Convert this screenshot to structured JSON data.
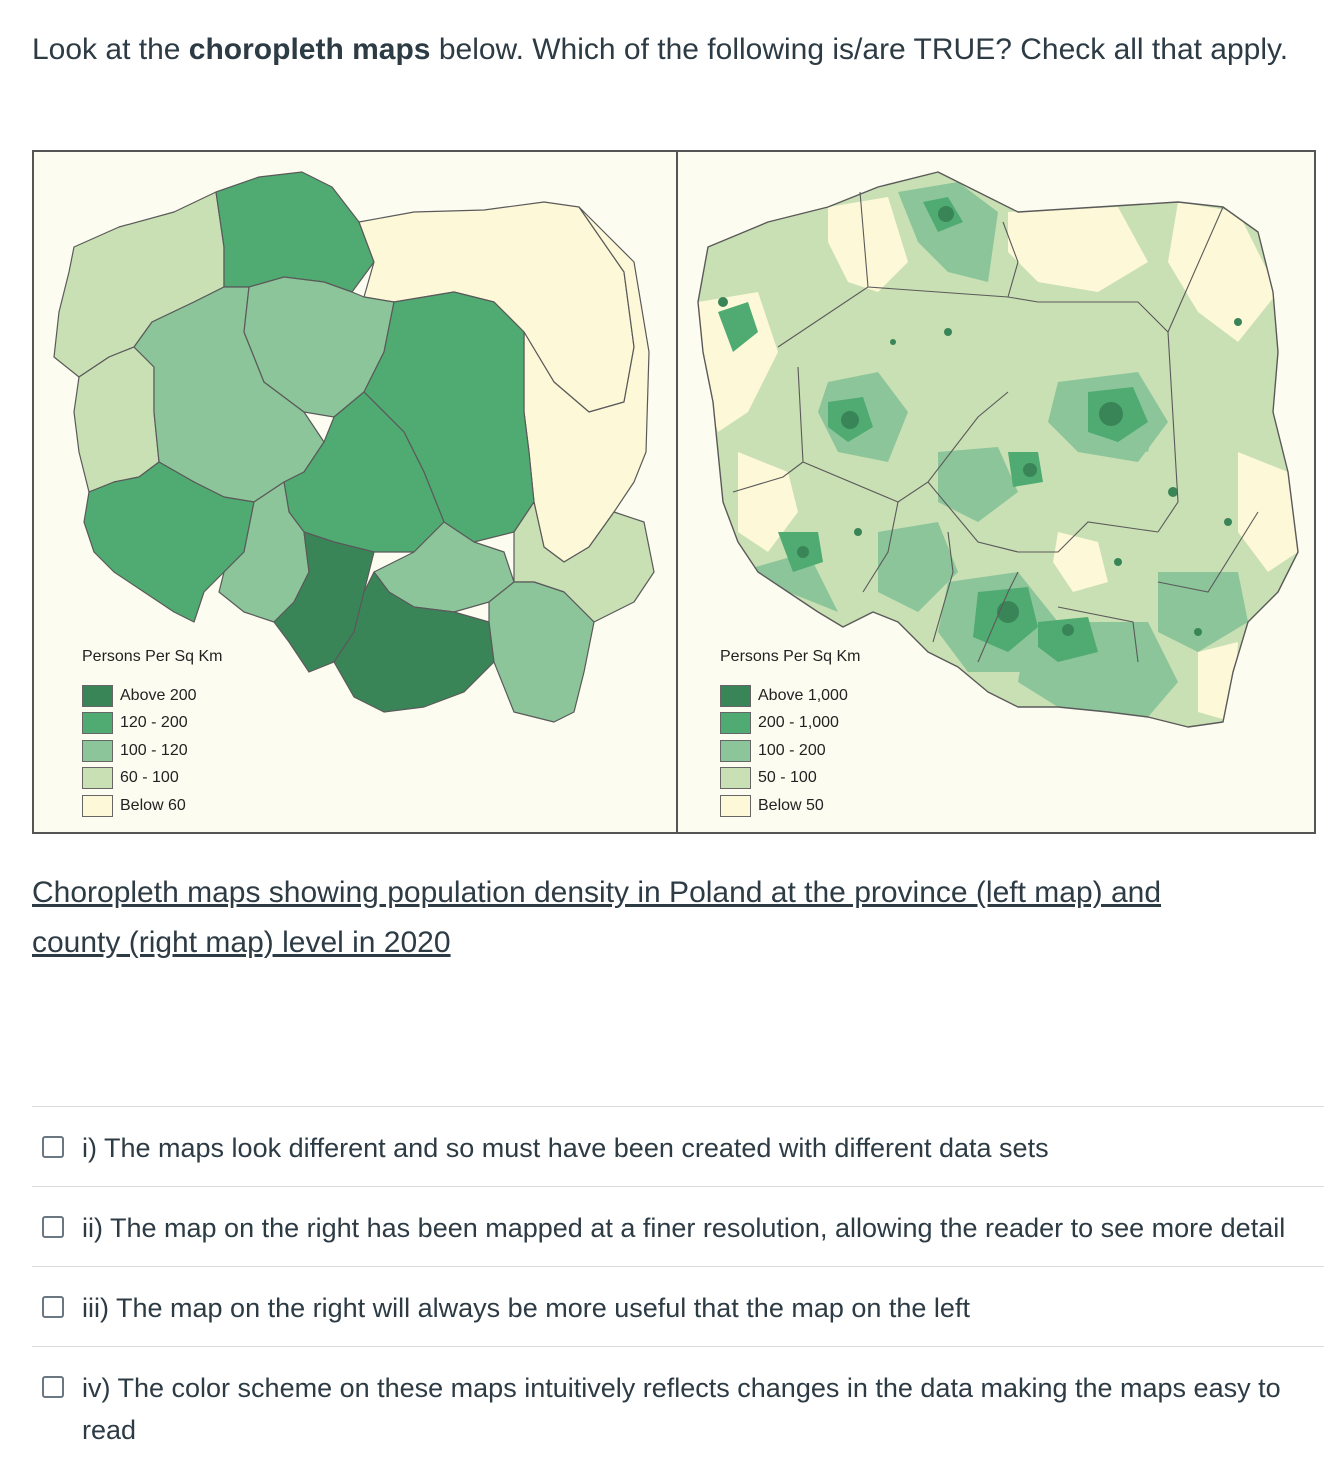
{
  "question": {
    "prefix": "Look at the ",
    "bold": "choropleth maps",
    "suffix": " below. Which of the following is/are TRUE? Check all that apply."
  },
  "left_map": {
    "legend_title": "Persons Per Sq Km",
    "legend": [
      {
        "label": "Above 200",
        "color": "#3a8558"
      },
      {
        "label": "120 - 200",
        "color": "#4fab72"
      },
      {
        "label": "100 - 120",
        "color": "#8cc59a"
      },
      {
        "label": "60 - 100",
        "color": "#c9dfb4"
      },
      {
        "label": "Below 60",
        "color": "#fdf8d8"
      }
    ]
  },
  "right_map": {
    "legend_title": "Persons Per Sq Km",
    "legend": [
      {
        "label": "Above 1,000",
        "color": "#3a8558"
      },
      {
        "label": "200 - 1,000",
        "color": "#4fab72"
      },
      {
        "label": "100 - 200",
        "color": "#8cc59a"
      },
      {
        "label": "50 - 100",
        "color": "#c9dfb4"
      },
      {
        "label": "Below 50",
        "color": "#fdf8d8"
      }
    ]
  },
  "caption": "Choropleth maps showing population density in Poland at the province (left map) and county (right map) level in 2020",
  "options": [
    {
      "label": "i) The maps look different and so must have been created with different data sets",
      "checked": false
    },
    {
      "label": "ii) The map on the right has been mapped at a finer resolution, allowing the reader to see more detail",
      "checked": false
    },
    {
      "label": "iii) The map on the right will always be more useful that the map on the left",
      "checked": false
    },
    {
      "label": "iv) The color scheme on these maps intuitively reflects changes in the data making the maps easy to read",
      "checked": false
    }
  ]
}
